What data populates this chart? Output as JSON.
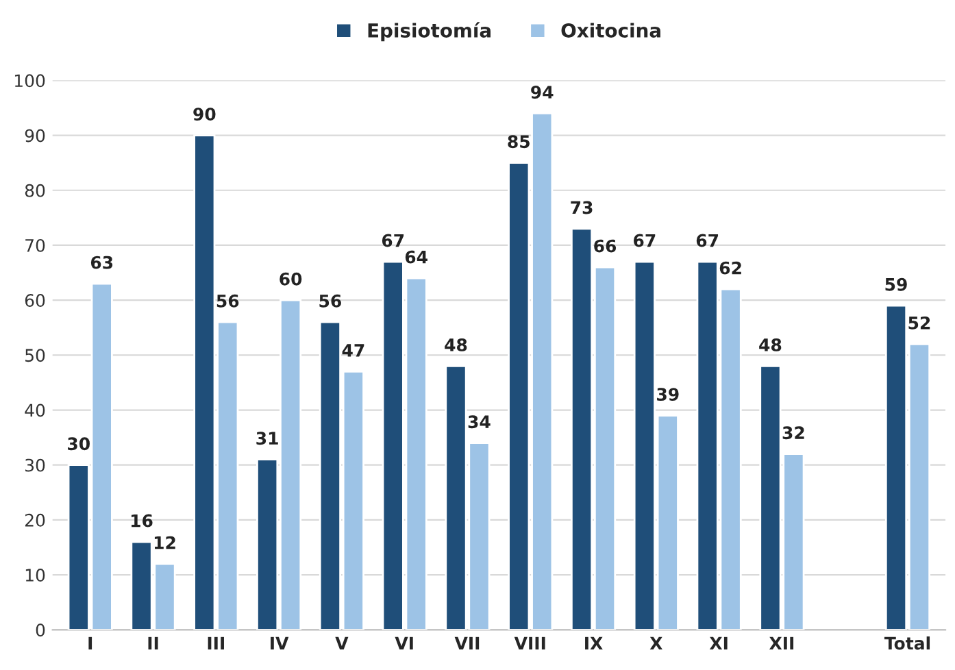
{
  "chart_data": {
    "type": "bar",
    "categories": [
      "I",
      "II",
      "III",
      "IV",
      "V",
      "VI",
      "VII",
      "VIII",
      "IX",
      "X",
      "XI",
      "XII",
      null,
      "Total"
    ],
    "series": [
      {
        "name": "Episiotomía",
        "color": "#1f4e79",
        "values": [
          30,
          16,
          90,
          31,
          56,
          67,
          48,
          85,
          73,
          67,
          67,
          48,
          null,
          59
        ]
      },
      {
        "name": "Oxitocina",
        "color": "#9dc3e6",
        "values": [
          63,
          12,
          56,
          60,
          47,
          64,
          34,
          94,
          66,
          39,
          62,
          32,
          null,
          52
        ]
      }
    ],
    "ylim": [
      0,
      100
    ],
    "yticks": [
      0,
      10,
      20,
      30,
      40,
      50,
      60,
      70,
      80,
      90,
      100
    ],
    "grid": "y",
    "legend": "top",
    "data_labels": true
  }
}
